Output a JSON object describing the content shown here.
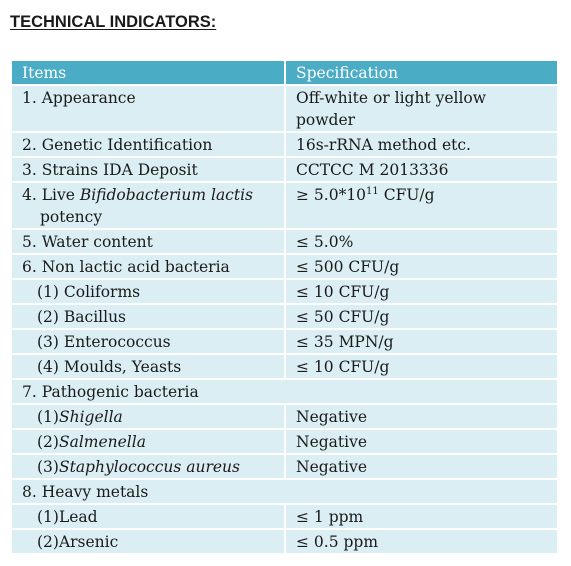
{
  "title": "TECHNICAL INDICATORS:",
  "table": {
    "headers": {
      "items": "Items",
      "specification": "Specification"
    },
    "rows": {
      "appearance": {
        "item": "1. Appearance",
        "spec_line1": "Off-white or light yellow",
        "spec_line2": "powder"
      },
      "genetic": {
        "item": "2. Genetic Identification",
        "spec": "16s-rRNA method etc."
      },
      "strains": {
        "item": "3. Strains IDA Deposit",
        "spec": "CCTCC M 2013336"
      },
      "live": {
        "item_prefix": "4. Live ",
        "item_italic": "Bifidobacterium lactis",
        "item_line2": "potency",
        "spec_prefix": "≥ 5.0*10",
        "spec_exp": "11",
        "spec_suffix": " CFU/g"
      },
      "water": {
        "item": "5. Water content",
        "spec": "≤ 5.0%"
      },
      "non_lactic": {
        "item": "6. Non lactic acid bacteria",
        "spec": "≤ 500 CFU/g"
      },
      "coliforms": {
        "item": "(1) Coliforms",
        "spec": "≤ 10 CFU/g"
      },
      "bacillus": {
        "item": "(2) Bacillus",
        "spec": "≤ 50 CFU/g"
      },
      "enterococcus": {
        "item": "(3) Enterococcus",
        "spec": "≤ 35 MPN/g"
      },
      "moulds": {
        "item": "(4) Moulds, Yeasts",
        "spec": "≤ 10 CFU/g"
      },
      "pathogenic": {
        "item": "7. Pathogenic bacteria"
      },
      "shigella": {
        "item_prefix": "(1)",
        "item_italic": "Shigella",
        "spec": "Negative"
      },
      "salmenella": {
        "item_prefix": "(2)",
        "item_italic": "Salmenella",
        "spec": "Negative"
      },
      "staph": {
        "item_prefix": "(3)",
        "item_italic": "Staphylococcus aureus",
        "spec": "Negative"
      },
      "heavy_metals": {
        "item": "8. Heavy metals"
      },
      "lead": {
        "item": "(1)Lead",
        "spec": "≤ 1 ppm"
      },
      "arsenic": {
        "item": "(2)Arsenic",
        "spec": "≤ 0.5 ppm"
      }
    }
  },
  "colors": {
    "header_bg": "#4bacc6",
    "row_bg": "#dbeef3",
    "header_text": "#ffffff"
  }
}
